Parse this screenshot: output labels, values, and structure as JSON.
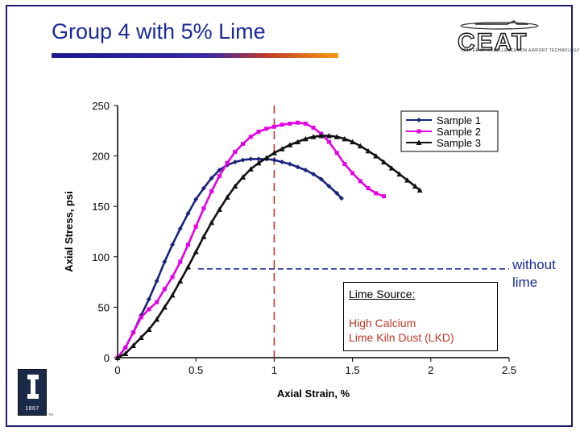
{
  "slide": {
    "title": "Group 4 with 5% Lime",
    "logo_text": "CEAT",
    "logo_subtitle": "CENTER OF EXCELLENCE FOR AIRPORT TECHNOLOGY",
    "seal_year": "1867",
    "trademark": "TM",
    "accent_color": "#1a2a9a"
  },
  "lime_box": {
    "heading": "Lime Source:",
    "line1": "High Calcium",
    "line2": "Lime Kiln Dust (LKD)"
  },
  "reference": {
    "without_label_line1": "without",
    "without_label_line2": "lime",
    "without_lime_stress": 88,
    "peak_strain_line": 1.0
  },
  "chart_data": {
    "type": "line",
    "xlabel": "Axial Strain, %",
    "ylabel": "Axial Stress, psi",
    "xlim": [
      0,
      2.5
    ],
    "ylim": [
      0,
      250
    ],
    "x_ticks": [
      0,
      0.5,
      1,
      1.5,
      2,
      2.5
    ],
    "x_tick_labels": [
      "0",
      "0.5",
      "1",
      "1.5",
      "2",
      "2.5"
    ],
    "y_ticks": [
      0,
      50,
      100,
      150,
      200,
      250
    ],
    "y_tick_labels": [
      "0",
      "50",
      "100",
      "150",
      "200",
      "250"
    ],
    "grid": false,
    "legend_position": "top-right",
    "series": [
      {
        "name": "Sample 1",
        "color": "#1a237e",
        "marker": "diamond",
        "points": [
          [
            0,
            0
          ],
          [
            0.05,
            10
          ],
          [
            0.1,
            25
          ],
          [
            0.15,
            42
          ],
          [
            0.2,
            58
          ],
          [
            0.25,
            76
          ],
          [
            0.3,
            95
          ],
          [
            0.35,
            112
          ],
          [
            0.4,
            128
          ],
          [
            0.45,
            143
          ],
          [
            0.5,
            157
          ],
          [
            0.55,
            168
          ],
          [
            0.6,
            178
          ],
          [
            0.65,
            186
          ],
          [
            0.7,
            191
          ],
          [
            0.75,
            194
          ],
          [
            0.8,
            196
          ],
          [
            0.85,
            197
          ],
          [
            0.9,
            197
          ],
          [
            0.95,
            197
          ],
          [
            1.0,
            196
          ],
          [
            1.05,
            194
          ],
          [
            1.1,
            192
          ],
          [
            1.15,
            189
          ],
          [
            1.2,
            186
          ],
          [
            1.25,
            182
          ],
          [
            1.3,
            177
          ],
          [
            1.35,
            170
          ],
          [
            1.4,
            163
          ],
          [
            1.43,
            158
          ]
        ]
      },
      {
        "name": "Sample 2",
        "color": "#e600e6",
        "marker": "square",
        "points": [
          [
            0,
            0
          ],
          [
            0.05,
            10
          ],
          [
            0.1,
            25
          ],
          [
            0.15,
            40
          ],
          [
            0.2,
            48
          ],
          [
            0.25,
            55
          ],
          [
            0.3,
            68
          ],
          [
            0.35,
            80
          ],
          [
            0.4,
            95
          ],
          [
            0.45,
            112
          ],
          [
            0.5,
            130
          ],
          [
            0.55,
            148
          ],
          [
            0.6,
            165
          ],
          [
            0.65,
            180
          ],
          [
            0.7,
            193
          ],
          [
            0.75,
            204
          ],
          [
            0.8,
            212
          ],
          [
            0.85,
            219
          ],
          [
            0.9,
            224
          ],
          [
            0.95,
            227
          ],
          [
            1.0,
            229
          ],
          [
            1.05,
            231
          ],
          [
            1.1,
            232
          ],
          [
            1.15,
            233
          ],
          [
            1.2,
            232
          ],
          [
            1.25,
            228
          ],
          [
            1.3,
            222
          ],
          [
            1.35,
            214
          ],
          [
            1.4,
            203
          ],
          [
            1.45,
            192
          ],
          [
            1.5,
            183
          ],
          [
            1.55,
            175
          ],
          [
            1.6,
            168
          ],
          [
            1.65,
            163
          ],
          [
            1.7,
            160
          ]
        ]
      },
      {
        "name": "Sample 3",
        "color": "#111111",
        "marker": "triangle",
        "points": [
          [
            0,
            0
          ],
          [
            0.05,
            4
          ],
          [
            0.1,
            12
          ],
          [
            0.15,
            20
          ],
          [
            0.2,
            28
          ],
          [
            0.25,
            38
          ],
          [
            0.3,
            50
          ],
          [
            0.35,
            62
          ],
          [
            0.4,
            76
          ],
          [
            0.45,
            90
          ],
          [
            0.5,
            105
          ],
          [
            0.55,
            120
          ],
          [
            0.6,
            134
          ],
          [
            0.65,
            147
          ],
          [
            0.7,
            159
          ],
          [
            0.75,
            170
          ],
          [
            0.8,
            179
          ],
          [
            0.85,
            187
          ],
          [
            0.9,
            193
          ],
          [
            0.95,
            198
          ],
          [
            1.0,
            203
          ],
          [
            1.05,
            207
          ],
          [
            1.1,
            211
          ],
          [
            1.15,
            214
          ],
          [
            1.2,
            217
          ],
          [
            1.25,
            219
          ],
          [
            1.3,
            220
          ],
          [
            1.35,
            220
          ],
          [
            1.4,
            219
          ],
          [
            1.45,
            217
          ],
          [
            1.5,
            214
          ],
          [
            1.55,
            210
          ],
          [
            1.6,
            205
          ],
          [
            1.65,
            200
          ],
          [
            1.7,
            194
          ],
          [
            1.75,
            188
          ],
          [
            1.8,
            182
          ],
          [
            1.85,
            176
          ],
          [
            1.9,
            170
          ],
          [
            1.93,
            166
          ]
        ]
      }
    ]
  }
}
